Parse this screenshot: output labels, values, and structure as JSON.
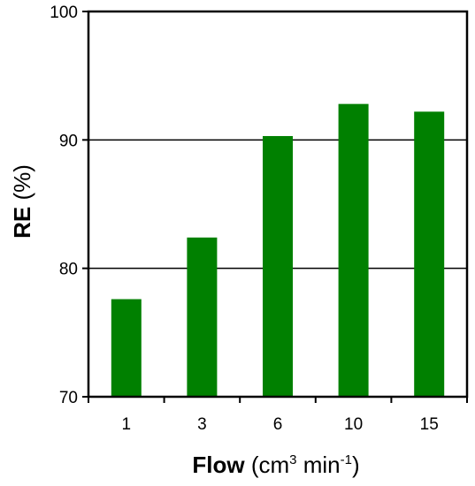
{
  "chart_data": {
    "type": "bar",
    "categories": [
      "1",
      "3",
      "6",
      "10",
      "15"
    ],
    "values": [
      77.6,
      82.4,
      90.3,
      92.8,
      92.2
    ],
    "title": "",
    "xlabel": {
      "bold": "Flow",
      "pre": "(cm",
      "sup1": "3",
      "mid": " min",
      "sup2": "-1",
      "post": ")"
    },
    "ylabel": {
      "bold": "RE",
      "rest": "(%)"
    },
    "ylim": [
      70,
      100
    ],
    "yticks": [
      "70",
      "80",
      "90",
      "100"
    ],
    "grid": true,
    "legend": "none",
    "bar_color": "#008000"
  }
}
